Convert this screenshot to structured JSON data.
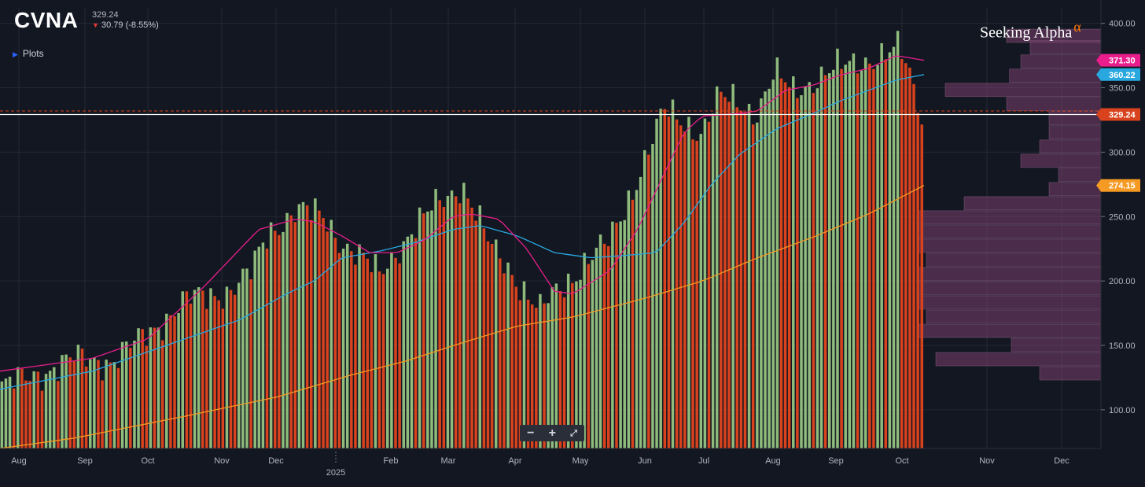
{
  "header": {
    "ticker": "CVNA",
    "price": "329.24",
    "change": "30.79 (-8.55%)",
    "plots_label": "Plots"
  },
  "brand": {
    "name": "Seeking Alpha",
    "symbol": "α"
  },
  "colors": {
    "background": "#131722",
    "up_bar": "#8fbc7c",
    "down_bar": "#d8431e",
    "ma_short": "#e91e8c",
    "ma_mid": "#29a8e0",
    "ma_long": "#f59a23",
    "volume_profile": "#7a3f6d"
  },
  "zoom_controls": {
    "minus": "−",
    "plus": "+",
    "fullscreen": "⤢"
  },
  "chart_data": {
    "type": "bar",
    "price_axis": {
      "ticks": [
        "100.00",
        "150.00",
        "200.00",
        "250.00",
        "300.00",
        "350.00",
        "400.00"
      ],
      "range": [
        70,
        412
      ],
      "position": "right"
    },
    "time_axis": {
      "labels": [
        "Aug",
        "Sep",
        "Oct",
        "Nov",
        "Dec",
        "2025",
        "Feb",
        "Mar",
        "Apr",
        "May",
        "Jun",
        "Jul",
        "Aug",
        "Sep",
        "Oct",
        "Nov",
        "Dec"
      ]
    },
    "badges": [
      {
        "value": "371.30",
        "color": "#e91e8c"
      },
      {
        "value": "360.22",
        "color": "#29a8e0"
      },
      {
        "value": "329.24",
        "color": "#d8431e"
      },
      {
        "value": "274.15",
        "color": "#f59a23"
      }
    ],
    "last_price": 329.24,
    "resistance_level": 332,
    "price_path": [
      [
        0,
        118
      ],
      [
        0.04,
        128
      ],
      [
        0.08,
        140
      ],
      [
        0.12,
        138
      ],
      [
        0.16,
        160
      ],
      [
        0.2,
        185
      ],
      [
        0.245,
        192
      ],
      [
        0.27,
        205
      ],
      [
        0.29,
        238
      ],
      [
        0.32,
        255
      ],
      [
        0.35,
        250
      ],
      [
        0.37,
        230
      ],
      [
        0.39,
        218
      ],
      [
        0.41,
        205
      ],
      [
        0.43,
        225
      ],
      [
        0.455,
        245
      ],
      [
        0.475,
        262
      ],
      [
        0.5,
        275
      ],
      [
        0.51,
        260
      ],
      [
        0.53,
        228
      ],
      [
        0.55,
        212
      ],
      [
        0.57,
        190
      ],
      [
        0.585,
        176
      ],
      [
        0.6,
        190
      ],
      [
        0.615,
        200
      ],
      [
        0.635,
        215
      ],
      [
        0.66,
        230
      ],
      [
        0.685,
        270
      ],
      [
        0.705,
        305
      ],
      [
        0.72,
        332
      ],
      [
        0.74,
        325
      ],
      [
        0.76,
        315
      ],
      [
        0.78,
        342
      ],
      [
        0.8,
        340
      ],
      [
        0.82,
        330
      ],
      [
        0.84,
        360
      ],
      [
        0.86,
        348
      ],
      [
        0.88,
        355
      ],
      [
        0.9,
        362
      ],
      [
        0.92,
        368
      ],
      [
        0.94,
        372
      ],
      [
        0.96,
        375
      ],
      [
        0.975,
        380
      ],
      [
        0.985,
        365
      ],
      [
        1,
        329
      ]
    ],
    "ma_short": [
      [
        0,
        130
      ],
      [
        0.1,
        140
      ],
      [
        0.16,
        155
      ],
      [
        0.22,
        195
      ],
      [
        0.28,
        240
      ],
      [
        0.32,
        248
      ],
      [
        0.34,
        246
      ],
      [
        0.37,
        235
      ],
      [
        0.4,
        222
      ],
      [
        0.43,
        222
      ],
      [
        0.46,
        232
      ],
      [
        0.49,
        250
      ],
      [
        0.51,
        252
      ],
      [
        0.54,
        248
      ],
      [
        0.57,
        225
      ],
      [
        0.6,
        192
      ],
      [
        0.62,
        190
      ],
      [
        0.66,
        208
      ],
      [
        0.69,
        240
      ],
      [
        0.72,
        285
      ],
      [
        0.74,
        315
      ],
      [
        0.76,
        328
      ],
      [
        0.8,
        330
      ],
      [
        0.82,
        332
      ],
      [
        0.85,
        348
      ],
      [
        0.88,
        352
      ],
      [
        0.91,
        360
      ],
      [
        0.94,
        365
      ],
      [
        0.97,
        375
      ],
      [
        1,
        371.3
      ]
    ],
    "ma_mid": [
      [
        0,
        116
      ],
      [
        0.1,
        130
      ],
      [
        0.18,
        150
      ],
      [
        0.26,
        170
      ],
      [
        0.31,
        190
      ],
      [
        0.34,
        200
      ],
      [
        0.37,
        218
      ],
      [
        0.41,
        223
      ],
      [
        0.45,
        230
      ],
      [
        0.49,
        240
      ],
      [
        0.52,
        243
      ],
      [
        0.56,
        235
      ],
      [
        0.6,
        222
      ],
      [
        0.64,
        218
      ],
      [
        0.68,
        220
      ],
      [
        0.71,
        222
      ],
      [
        0.74,
        245
      ],
      [
        0.77,
        275
      ],
      [
        0.8,
        298
      ],
      [
        0.84,
        318
      ],
      [
        0.88,
        330
      ],
      [
        0.91,
        340
      ],
      [
        0.94,
        348
      ],
      [
        0.97,
        356
      ],
      [
        1,
        360.22
      ]
    ],
    "ma_long": [
      [
        0,
        70
      ],
      [
        0.08,
        78
      ],
      [
        0.2,
        95
      ],
      [
        0.3,
        110
      ],
      [
        0.38,
        127
      ],
      [
        0.44,
        138
      ],
      [
        0.5,
        152
      ],
      [
        0.56,
        165
      ],
      [
        0.62,
        172
      ],
      [
        0.7,
        187
      ],
      [
        0.76,
        200
      ],
      [
        0.82,
        218
      ],
      [
        0.88,
        234
      ],
      [
        0.94,
        252
      ],
      [
        1,
        274.15
      ]
    ],
    "volume_profile": [
      {
        "price": 390,
        "size": 1.0
      },
      {
        "price": 381,
        "size": 0.75
      },
      {
        "price": 370,
        "size": 0.85
      },
      {
        "price": 359,
        "size": 0.97
      },
      {
        "price": 348,
        "size": 1.65
      },
      {
        "price": 337,
        "size": 1.0
      },
      {
        "price": 326,
        "size": 0.55
      },
      {
        "price": 315,
        "size": 0.55
      },
      {
        "price": 304,
        "size": 0.65
      },
      {
        "price": 293,
        "size": 0.85
      },
      {
        "price": 282,
        "size": 0.45
      },
      {
        "price": 271,
        "size": 0.55
      },
      {
        "price": 260,
        "size": 1.45
      },
      {
        "price": 249,
        "size": 1.95
      },
      {
        "price": 238,
        "size": 1.95
      },
      {
        "price": 227,
        "size": 1.95
      },
      {
        "price": 216,
        "size": 1.85
      },
      {
        "price": 205,
        "size": 1.95
      },
      {
        "price": 194,
        "size": 1.95
      },
      {
        "price": 183,
        "size": 1.95
      },
      {
        "price": 172,
        "size": 1.85
      },
      {
        "price": 161,
        "size": 1.95
      },
      {
        "price": 150,
        "size": 0.95
      },
      {
        "price": 139,
        "size": 1.75
      },
      {
        "price": 128,
        "size": 0.65
      }
    ]
  }
}
